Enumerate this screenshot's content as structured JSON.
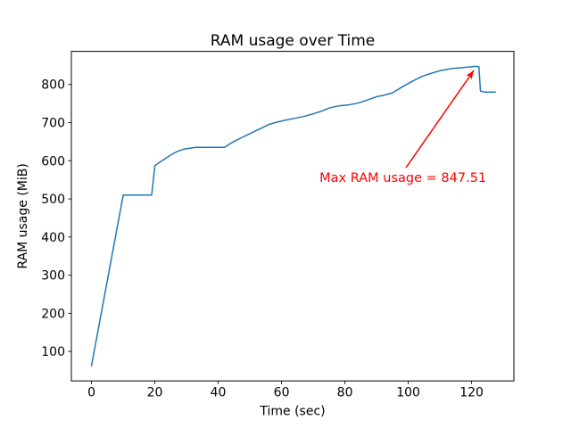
{
  "chart_data": {
    "type": "line",
    "title": "RAM usage over Time",
    "xlabel": "Time (sec)",
    "ylabel": "RAM usage (MiB)",
    "xlim": [
      -6.35,
      133.35
    ],
    "ylim": [
      22.72,
      886.79
    ],
    "xticks": [
      0,
      20,
      40,
      60,
      80,
      100,
      120
    ],
    "yticks": [
      100,
      200,
      300,
      400,
      500,
      600,
      700,
      800
    ],
    "grid": false,
    "legend": "none",
    "line_color": "#1f77b4",
    "line_width": 1.5,
    "series": [
      {
        "name": "RAM usage",
        "points": [
          [
            0,
            62
          ],
          [
            10,
            510
          ],
          [
            19,
            510
          ],
          [
            20,
            587
          ],
          [
            21,
            593
          ],
          [
            23,
            604
          ],
          [
            25,
            615
          ],
          [
            27,
            624
          ],
          [
            29,
            630
          ],
          [
            31,
            633
          ],
          [
            33,
            635
          ],
          [
            42,
            635
          ],
          [
            44,
            646
          ],
          [
            47,
            659
          ],
          [
            50,
            671
          ],
          [
            53,
            683
          ],
          [
            56,
            695
          ],
          [
            58,
            700
          ],
          [
            61,
            706
          ],
          [
            64,
            711
          ],
          [
            67,
            716
          ],
          [
            70,
            723
          ],
          [
            73,
            731
          ],
          [
            75,
            738
          ],
          [
            78,
            744
          ],
          [
            81,
            746
          ],
          [
            84,
            751
          ],
          [
            87,
            759
          ],
          [
            90,
            768
          ],
          [
            92,
            771
          ],
          [
            95,
            778
          ],
          [
            98,
            793
          ],
          [
            101,
            807
          ],
          [
            104,
            820
          ],
          [
            106,
            826
          ],
          [
            110,
            836
          ],
          [
            114,
            842
          ],
          [
            118,
            845
          ],
          [
            121.5,
            847.51
          ],
          [
            122.3,
            846
          ],
          [
            122.8,
            783
          ],
          [
            124,
            780
          ],
          [
            127.5,
            780
          ]
        ]
      }
    ],
    "max_value": 847.51,
    "annotation": {
      "text": "Max RAM usage = 847.51",
      "color": "#ff0000",
      "text_xy": [
        72,
        556
      ],
      "arrow_tail_xy": [
        99.3,
        582
      ],
      "arrow_tip_xy": [
        120.7,
        837
      ]
    }
  }
}
